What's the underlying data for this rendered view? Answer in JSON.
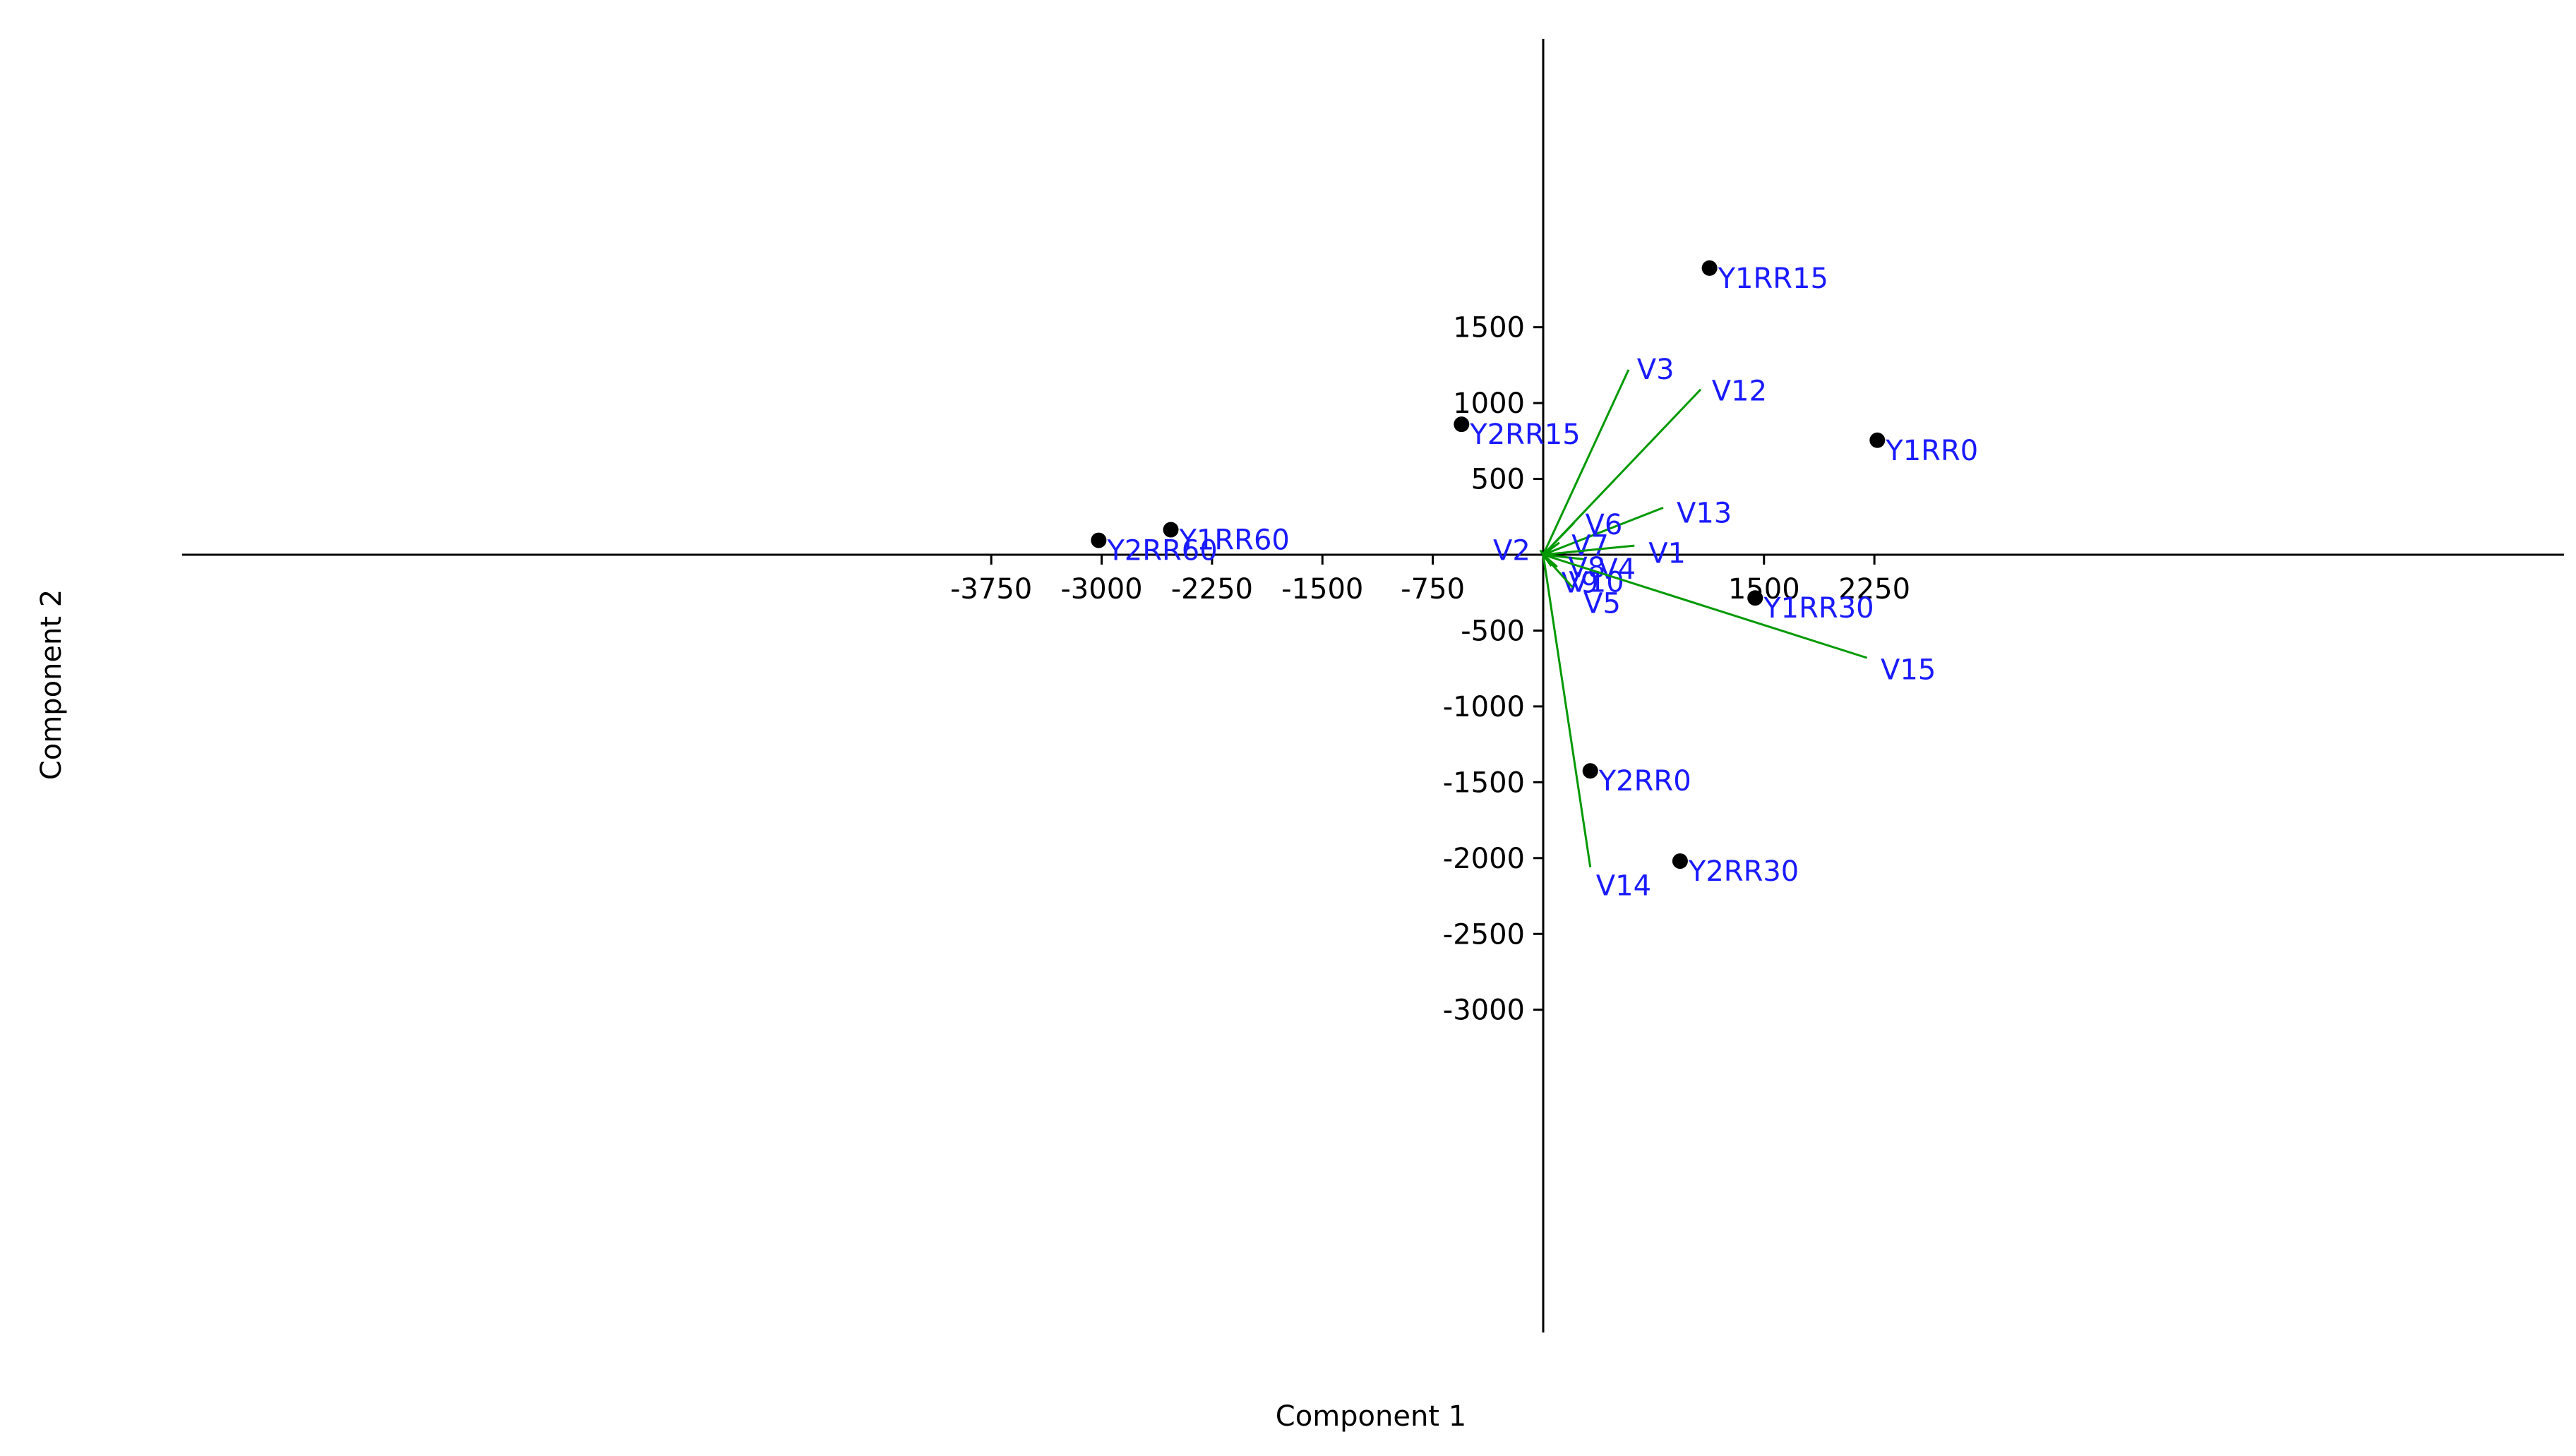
{
  "chart_data": {
    "type": "scatter",
    "xlabel": "Component 1",
    "ylabel": "Component 2",
    "xlim": [
      -4100,
      3000
    ],
    "ylim": [
      -3000,
      2000
    ],
    "x_ticks": [
      -3750,
      -3000,
      -2250,
      -1500,
      -750,
      1500,
      2250
    ],
    "x_tick_labels": [
      "-3750",
      "-3000",
      "-2250",
      "-1500",
      "-750",
      "1500",
      "2250"
    ],
    "y_ticks": [
      1500,
      1000,
      500,
      -500,
      -1000,
      -1500,
      -2000,
      -2500,
      -3000
    ],
    "y_tick_labels": [
      "1500",
      "1000",
      "500",
      "-500",
      "-1000",
      "-1500",
      "-2000",
      "-2500",
      "-3000"
    ],
    "grid": false,
    "colors": {
      "point": "#000000",
      "label": "#1a1aff",
      "vector": "#009900",
      "axis": "#000000"
    },
    "points": [
      {
        "label": "Y1RR15",
        "x": 1130,
        "y": 1890
      },
      {
        "label": "Y2RR15",
        "x": -555,
        "y": 860
      },
      {
        "label": "Y1RR0",
        "x": 2270,
        "y": 755
      },
      {
        "label": "Y1RR60",
        "x": -2530,
        "y": 165
      },
      {
        "label": "Y2RR60",
        "x": -3020,
        "y": 95
      },
      {
        "label": "Y1RR30",
        "x": 1440,
        "y": -285
      },
      {
        "label": "Y2RR0",
        "x": 320,
        "y": -1425
      },
      {
        "label": "Y2RR30",
        "x": 930,
        "y": -2020
      }
    ],
    "vectors": [
      {
        "label": "V3",
        "x": 580,
        "y": 1220
      },
      {
        "label": "V12",
        "x": 1070,
        "y": 1090
      },
      {
        "label": "V13",
        "x": 815,
        "y": 310
      },
      {
        "label": "V6",
        "x": 210,
        "y": 210
      },
      {
        "label": "V7",
        "x": 110,
        "y": 80
      },
      {
        "label": "V1",
        "x": 620,
        "y": 60
      },
      {
        "label": "V4",
        "x": 280,
        "y": -30
      },
      {
        "label": "V8",
        "x": 75,
        "y": -15
      },
      {
        "label": "V9",
        "x": 55,
        "y": -75
      },
      {
        "label": "V10",
        "x": 95,
        "y": -80
      },
      {
        "label": "V2",
        "x": -20,
        "y": 30
      },
      {
        "label": "V5",
        "x": 200,
        "y": -215
      },
      {
        "label": "V15",
        "x": 2200,
        "y": -680
      },
      {
        "label": "V14",
        "x": 320,
        "y": -2060
      }
    ]
  }
}
